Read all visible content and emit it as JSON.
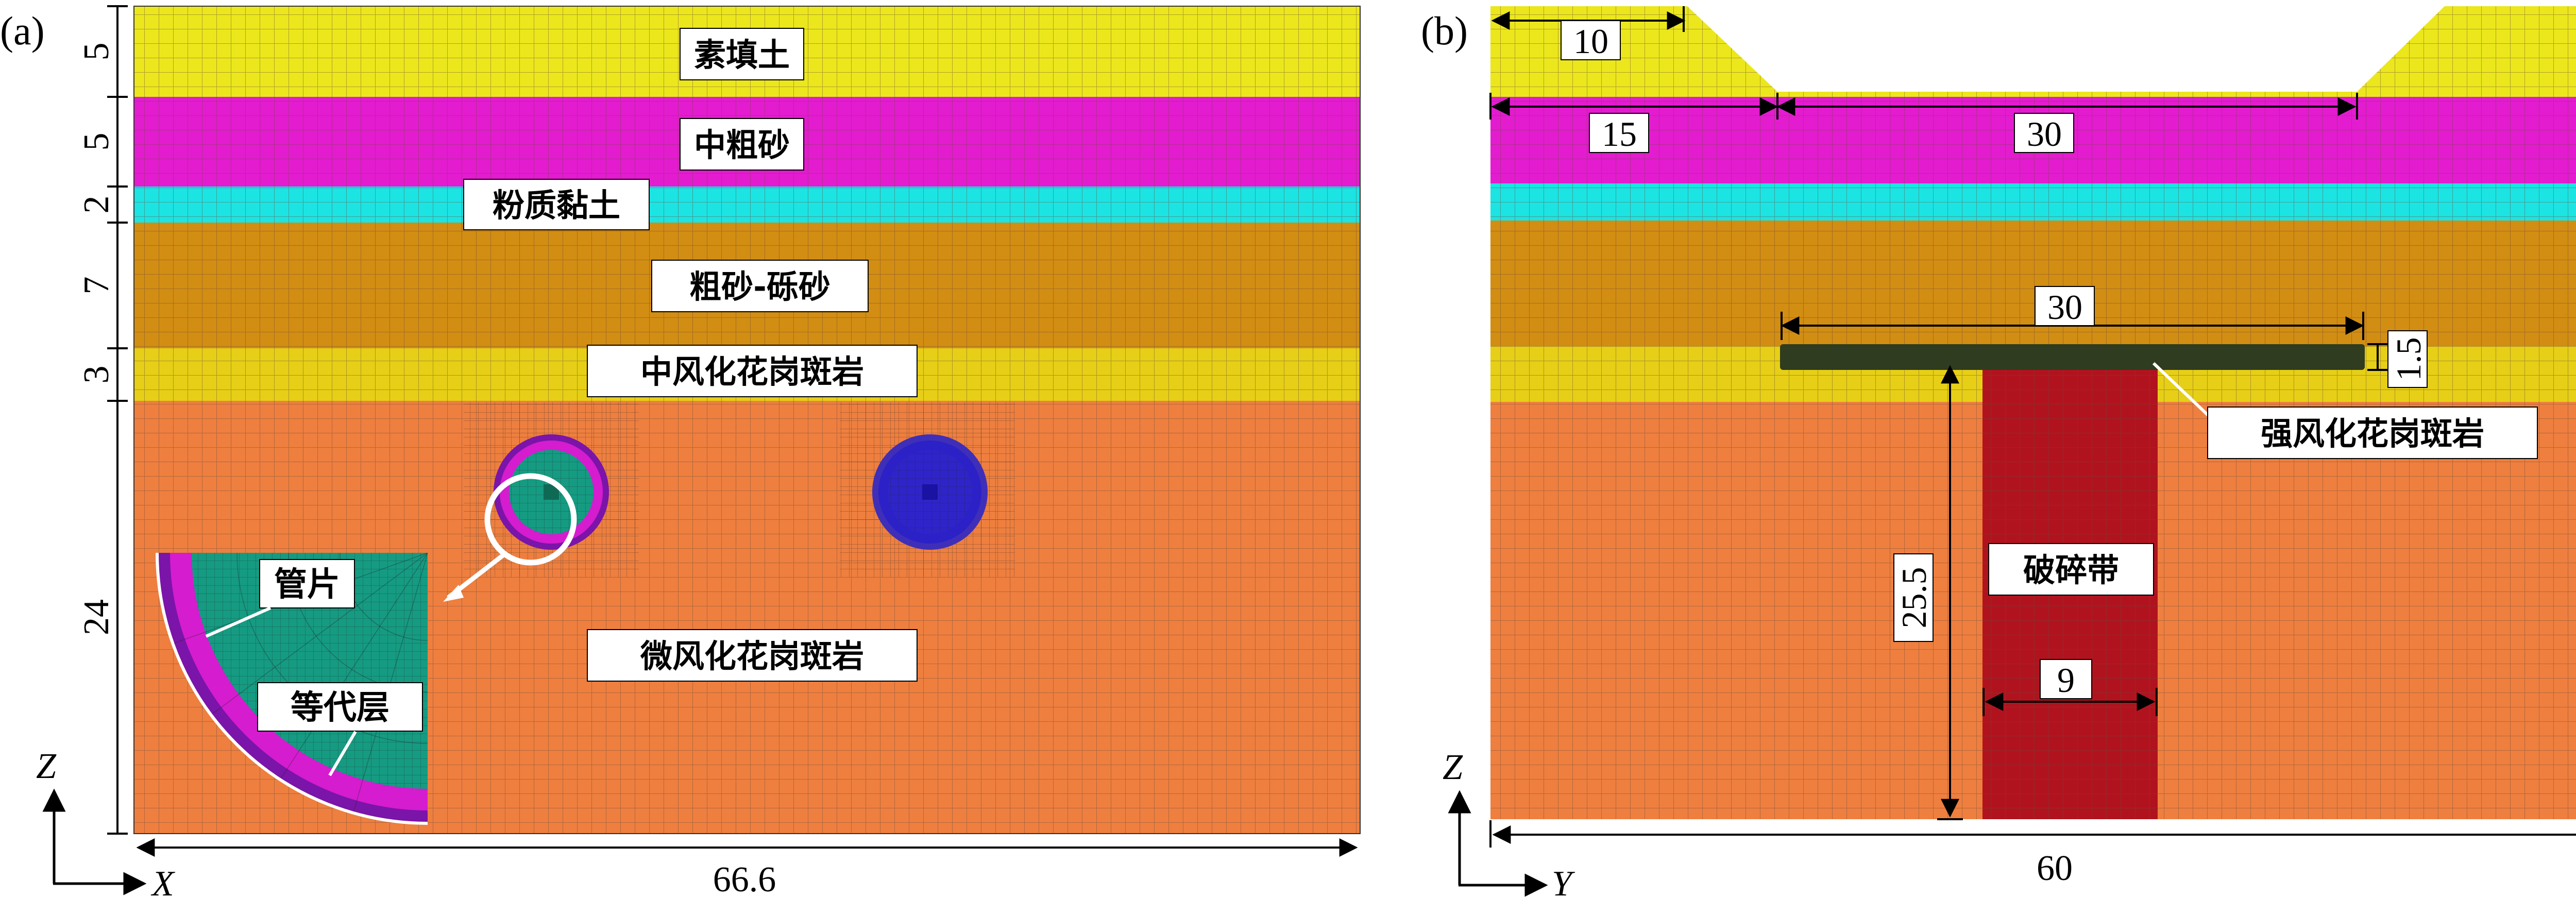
{
  "panel_a": {
    "tag": "(a)",
    "layers": [
      {
        "name": "素填土",
        "thickness": "5",
        "color": "#ebe71c"
      },
      {
        "name": "中粗砂",
        "thickness": "5",
        "color": "#e31ccf"
      },
      {
        "name": "粉质黏土",
        "thickness": "2",
        "color": "#1be4e3"
      },
      {
        "name": "粗砂-砾砂",
        "thickness": "7",
        "color": "#d28d13"
      },
      {
        "name": "中风化花岗斑岩",
        "thickness": "3",
        "color": "#e6cf16"
      },
      {
        "name": "微风化花岗斑岩",
        "thickness": "24",
        "color": "#ee7f3f"
      }
    ],
    "width_label": "66.6",
    "axis_vertical": "Z",
    "axis_horizontal": "X",
    "inset_labels": {
      "lining": "管片",
      "equiv_layer": "等代层"
    },
    "inset_colors": {
      "lining": "#159b82",
      "equiv_layer": "#d51ccf",
      "grout": "#7b14a8"
    },
    "tunnel_right_color": "#2b21c7"
  },
  "panel_b": {
    "tag": "(b)",
    "dims": {
      "top_left": "10",
      "left": "15",
      "middle": "30",
      "slab_width": "30",
      "slab_thickness": "1.5",
      "zone_depth": "25.5",
      "zone_width": "9",
      "total_width": "60"
    },
    "labels": {
      "weathered_slab": "强风化花岗斑岩",
      "fracture_zone": "破碎带"
    },
    "colors": {
      "slab": "#2f3c1f",
      "fracture_zone": "#b1131e"
    },
    "axis_vertical": "Z",
    "axis_horizontal": "Y"
  },
  "mesh_color": "#6a4a3a"
}
